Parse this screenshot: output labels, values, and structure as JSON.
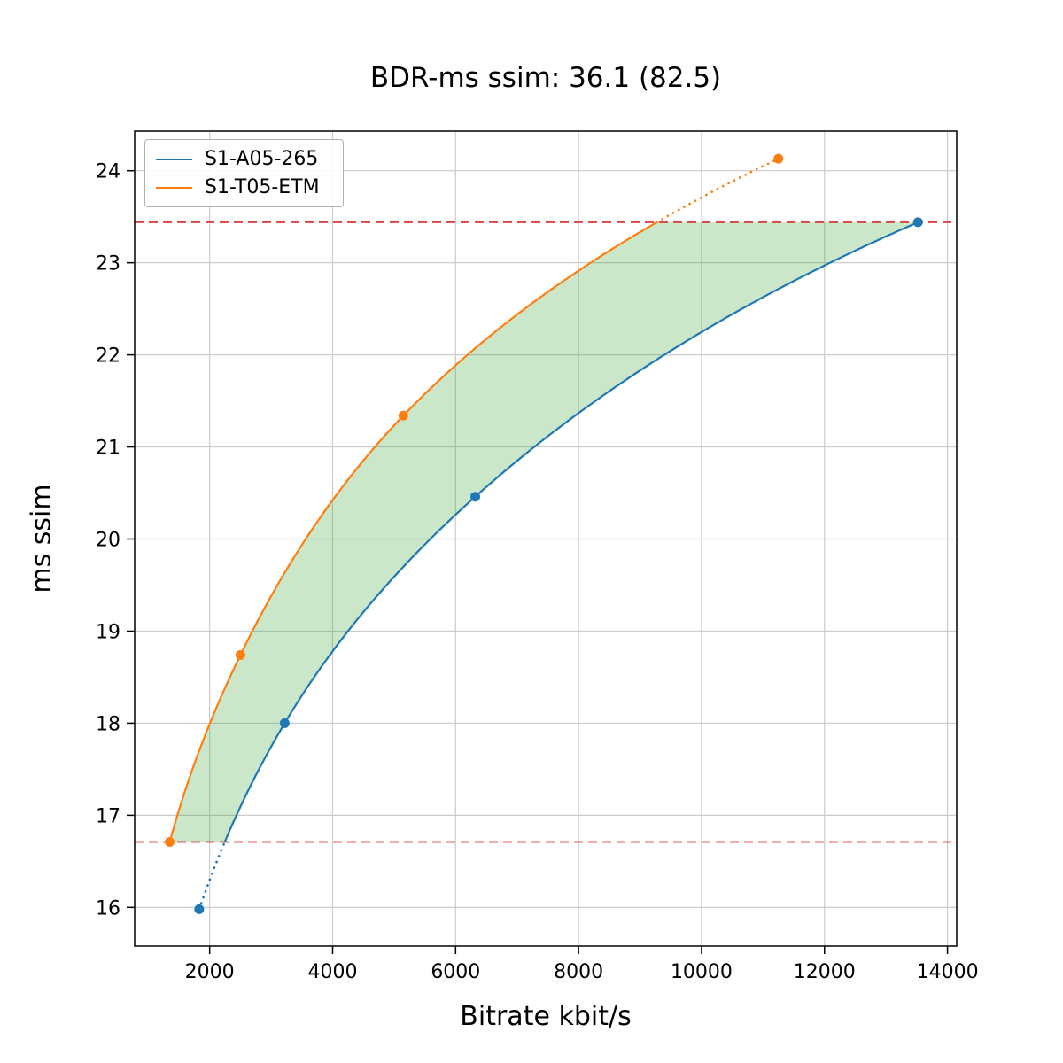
{
  "chart_data": {
    "type": "line",
    "title": "BDR-ms ssim: 36.1 (82.5)",
    "xlabel": "Bitrate kbit/s",
    "ylabel": "ms ssim",
    "bdr": {
      "value": 36.1,
      "overlap_percent": 82.5
    },
    "xlim": [
      780,
      14150
    ],
    "ylim": [
      15.58,
      24.43
    ],
    "xticks": [
      2000,
      4000,
      6000,
      8000,
      10000,
      12000,
      14000
    ],
    "yticks": [
      16,
      17,
      18,
      19,
      20,
      21,
      22,
      23,
      24
    ],
    "grid": true,
    "legend_position": "upper-left",
    "series": [
      {
        "name": "S1-A05-265",
        "color": "#1f77b4",
        "x": [
          1830,
          3220,
          6320,
          13520
        ],
        "y": [
          15.98,
          18.0,
          20.46,
          23.44
        ]
      },
      {
        "name": "S1-T05-ETM",
        "color": "#ff7f0e",
        "x": [
          1350,
          2500,
          5150,
          11250
        ],
        "y": [
          16.71,
          18.74,
          21.34,
          24.13
        ]
      }
    ],
    "hlines": [
      {
        "y": 16.71,
        "color": "#d62728",
        "style": "dashed"
      },
      {
        "y": 23.44,
        "color": "#d62728",
        "style": "dashed"
      }
    ],
    "fill_between": {
      "color": "#2ca02c",
      "opacity": 0.25,
      "y_min": 16.71,
      "y_max": 23.44,
      "between": [
        "S1-A05-265",
        "S1-T05-ETM"
      ]
    }
  }
}
